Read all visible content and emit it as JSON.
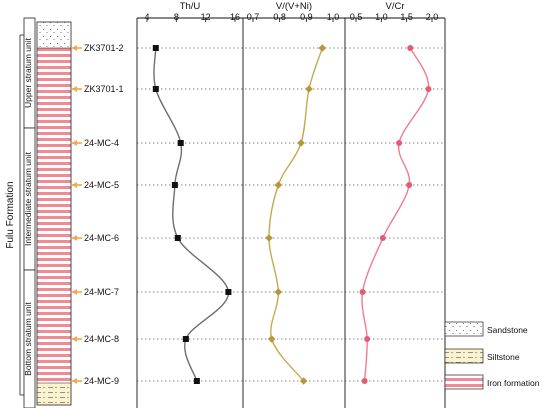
{
  "colors": {
    "thu": "#6e6e6e",
    "thu_marker": "#111111",
    "vvni": "#c9a84e",
    "vvni_marker": "#b8963c",
    "vcr": "#f07c91",
    "vcr_marker": "#e85a74",
    "iron_stripe": "#f08a94",
    "sandstone_dot": "#555555",
    "siltstone_fill": "#fbf3cf",
    "arrow": "#f5a54a"
  },
  "column": {
    "formation_label": "Fulu Formation",
    "units": [
      "Upper stratum unit",
      "Intermediate stratum unit",
      "Bottom stratum unit"
    ]
  },
  "samples": [
    "ZK3701-2",
    "ZK3701-1",
    "24-MC-4",
    "24-MC-5",
    "24-MC-6",
    "24-MC-7",
    "24-MC-8",
    "24-MC-9"
  ],
  "legend": [
    {
      "name": "Sandstone",
      "pattern": "dots"
    },
    {
      "name": "Siltstone",
      "pattern": "dash-dot"
    },
    {
      "name": "Iron formation",
      "pattern": "stripes"
    }
  ],
  "chart_data": [
    {
      "type": "line",
      "title": "Th/U",
      "xlim": [
        4,
        16
      ],
      "ticks": [
        "4",
        "8",
        "12",
        "16"
      ],
      "categories": [
        "ZK3701-2",
        "ZK3701-1",
        "24-MC-4",
        "24-MC-5",
        "24-MC-6",
        "24-MC-7",
        "24-MC-8",
        "24-MC-9"
      ],
      "values": [
        5.2,
        5.2,
        8.6,
        7.8,
        8.2,
        15.1,
        9.3,
        10.8
      ]
    },
    {
      "type": "line",
      "title": "V/(V+Ni)",
      "xlim": [
        0.7,
        1.0
      ],
      "ticks": [
        "0.7",
        "0.8",
        "0.9",
        "1.0"
      ],
      "categories": [
        "ZK3701-2",
        "ZK3701-1",
        "24-MC-4",
        "24-MC-5",
        "24-MC-6",
        "24-MC-7",
        "24-MC-8",
        "24-MC-9"
      ],
      "values": [
        0.96,
        0.91,
        0.88,
        0.795,
        0.76,
        0.795,
        0.77,
        0.89
      ]
    },
    {
      "type": "line",
      "title": "V/Cr",
      "xlim": [
        0.5,
        2.0
      ],
      "ticks": [
        "0.5",
        "1.0",
        "1.5",
        "2.0"
      ],
      "categories": [
        "ZK3701-2",
        "ZK3701-1",
        "24-MC-4",
        "24-MC-5",
        "24-MC-6",
        "24-MC-7",
        "24-MC-8",
        "24-MC-9"
      ],
      "values": [
        1.57,
        1.93,
        1.35,
        1.55,
        1.03,
        0.63,
        0.72,
        0.67
      ]
    }
  ]
}
